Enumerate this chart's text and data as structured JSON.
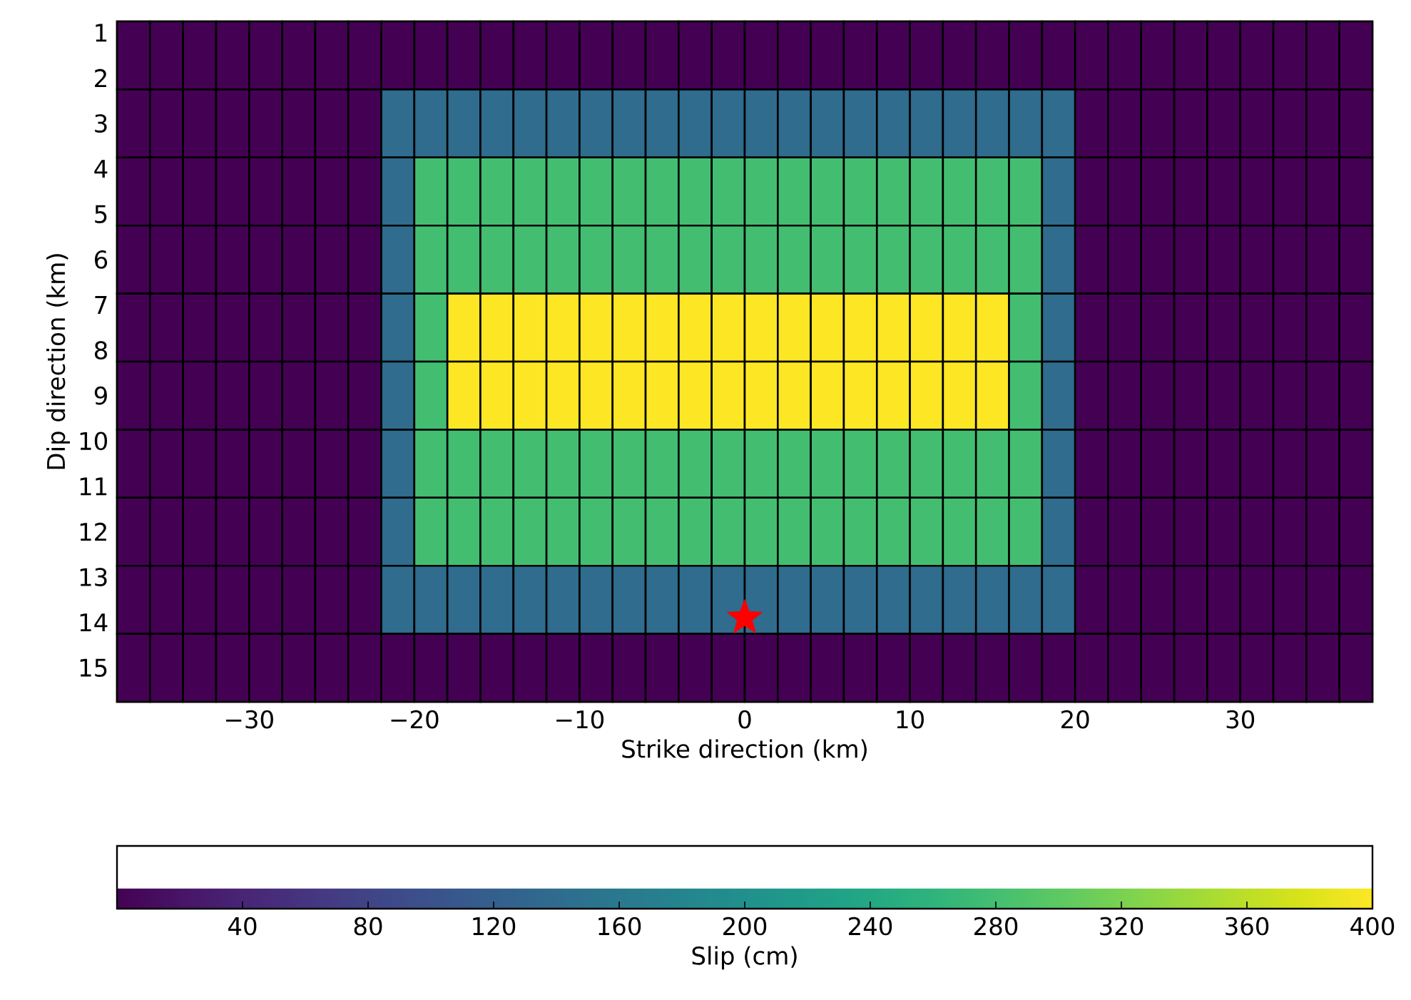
{
  "chart_data": {
    "type": "heatmap",
    "xlabel": "Strike direction (km)",
    "ylabel": "Dip direction (km)",
    "clabel": "Slip (cm)",
    "x": [
      -37,
      -35,
      -33,
      -31,
      -29,
      -27,
      -25,
      -23,
      -21,
      -19,
      -17,
      -15,
      -13,
      -11,
      -9,
      -7,
      -5,
      -3,
      -1,
      1,
      3,
      5,
      7,
      9,
      11,
      13,
      15,
      17,
      19,
      21,
      23,
      25,
      27,
      29,
      31,
      33,
      35,
      37
    ],
    "y": [
      1.5,
      3,
      4.5,
      6,
      7.5,
      9,
      10.5,
      12,
      13.5,
      15
    ],
    "cells": [
      [
        0,
        0,
        0,
        0,
        0,
        0,
        0,
        0,
        0,
        0,
        0,
        0,
        0,
        0,
        0,
        0,
        0,
        0,
        0,
        0,
        0,
        0,
        0,
        0,
        0,
        0,
        0,
        0,
        0,
        0,
        0,
        0,
        0,
        0,
        0,
        0,
        0,
        0
      ],
      [
        0,
        0,
        0,
        0,
        0,
        0,
        0,
        0,
        140,
        140,
        140,
        140,
        140,
        140,
        140,
        140,
        140,
        140,
        140,
        140,
        140,
        140,
        140,
        140,
        140,
        140,
        140,
        140,
        140,
        0,
        0,
        0,
        0,
        0,
        0,
        0,
        0,
        0
      ],
      [
        0,
        0,
        0,
        0,
        0,
        0,
        0,
        0,
        140,
        280,
        280,
        280,
        280,
        280,
        280,
        280,
        280,
        280,
        280,
        280,
        280,
        280,
        280,
        280,
        280,
        280,
        280,
        280,
        140,
        0,
        0,
        0,
        0,
        0,
        0,
        0,
        0,
        0
      ],
      [
        0,
        0,
        0,
        0,
        0,
        0,
        0,
        0,
        140,
        280,
        280,
        280,
        280,
        280,
        280,
        280,
        280,
        280,
        280,
        280,
        280,
        280,
        280,
        280,
        280,
        280,
        280,
        280,
        140,
        0,
        0,
        0,
        0,
        0,
        0,
        0,
        0,
        0
      ],
      [
        0,
        0,
        0,
        0,
        0,
        0,
        0,
        0,
        140,
        280,
        400,
        400,
        400,
        400,
        400,
        400,
        400,
        400,
        400,
        400,
        400,
        400,
        400,
        400,
        400,
        400,
        400,
        280,
        140,
        0,
        0,
        0,
        0,
        0,
        0,
        0,
        0,
        0
      ],
      [
        0,
        0,
        0,
        0,
        0,
        0,
        0,
        0,
        140,
        280,
        400,
        400,
        400,
        400,
        400,
        400,
        400,
        400,
        400,
        400,
        400,
        400,
        400,
        400,
        400,
        400,
        400,
        280,
        140,
        0,
        0,
        0,
        0,
        0,
        0,
        0,
        0,
        0
      ],
      [
        0,
        0,
        0,
        0,
        0,
        0,
        0,
        0,
        140,
        280,
        280,
        280,
        280,
        280,
        280,
        280,
        280,
        280,
        280,
        280,
        280,
        280,
        280,
        280,
        280,
        280,
        280,
        280,
        140,
        0,
        0,
        0,
        0,
        0,
        0,
        0,
        0,
        0
      ],
      [
        0,
        0,
        0,
        0,
        0,
        0,
        0,
        0,
        140,
        280,
        280,
        280,
        280,
        280,
        280,
        280,
        280,
        280,
        280,
        280,
        280,
        280,
        280,
        280,
        280,
        280,
        280,
        280,
        140,
        0,
        0,
        0,
        0,
        0,
        0,
        0,
        0,
        0
      ],
      [
        0,
        0,
        0,
        0,
        0,
        0,
        0,
        0,
        140,
        140,
        140,
        140,
        140,
        140,
        140,
        140,
        140,
        140,
        140,
        140,
        140,
        140,
        140,
        140,
        140,
        140,
        140,
        140,
        140,
        0,
        0,
        0,
        0,
        0,
        0,
        0,
        0,
        0
      ],
      [
        0,
        0,
        0,
        0,
        0,
        0,
        0,
        0,
        0,
        0,
        0,
        0,
        0,
        0,
        0,
        0,
        0,
        0,
        0,
        0,
        0,
        0,
        0,
        0,
        0,
        0,
        0,
        0,
        0,
        0,
        0,
        0,
        0,
        0,
        0,
        0,
        0,
        0
      ]
    ],
    "clim": [
      0,
      400
    ],
    "cticks": [
      40,
      80,
      120,
      160,
      200,
      240,
      280,
      320,
      360,
      400
    ],
    "xlim": [
      -38,
      38
    ],
    "ylim": [
      15.75,
      0.75
    ],
    "xticks": [
      {
        "value": -30,
        "label": "−30"
      },
      {
        "value": -20,
        "label": "−20"
      },
      {
        "value": -10,
        "label": "−10"
      },
      0,
      10,
      20,
      30
    ],
    "yticks": [
      1,
      2,
      3,
      4,
      5,
      6,
      7,
      8,
      9,
      10,
      11,
      12,
      13,
      14,
      15
    ],
    "series": [
      {
        "type": "scatter",
        "x": [
          0
        ],
        "values": [
          13.9
        ],
        "color": "#ff0000",
        "marker": "star"
      }
    ]
  }
}
